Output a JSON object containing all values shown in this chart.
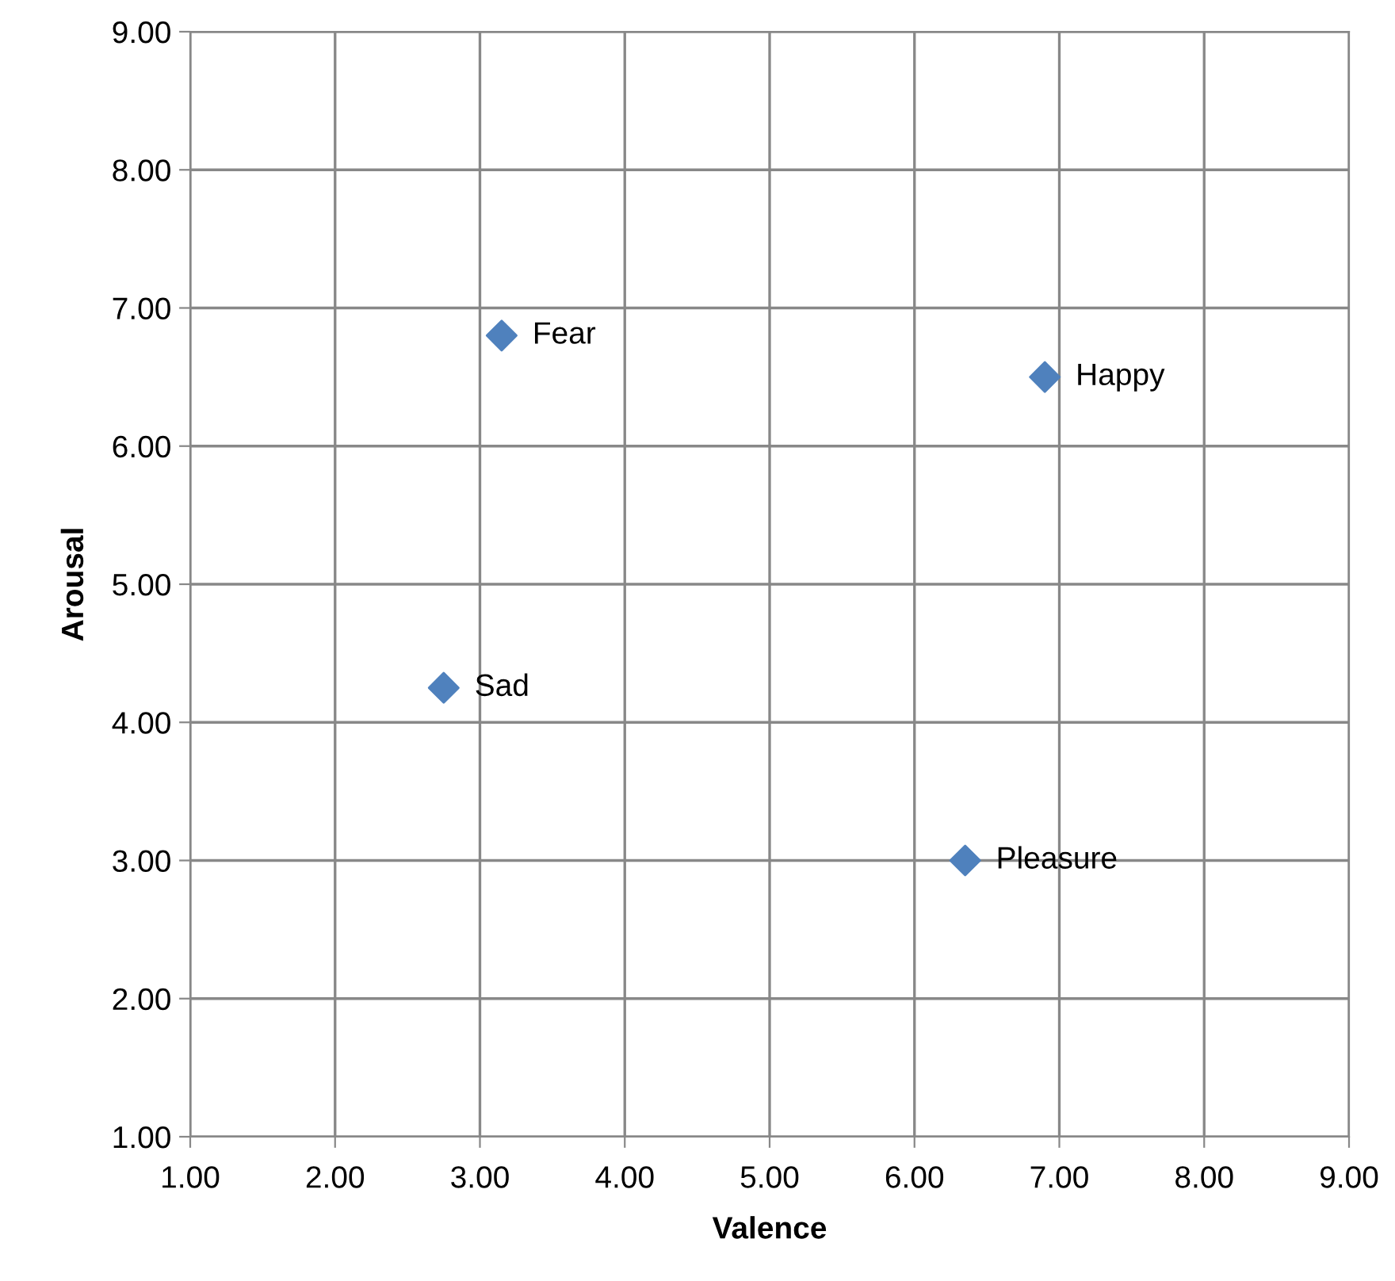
{
  "chart_data": {
    "type": "scatter",
    "xlabel": "Valence",
    "ylabel": "Arousal",
    "series": [
      {
        "color": "#4f81bd",
        "x": [
          3.15,
          6.9,
          2.75,
          6.35
        ],
        "values": [
          6.8,
          6.5,
          4.25,
          3.0
        ]
      }
    ],
    "annotations": [
      {
        "text": "Fear",
        "x": 3.15,
        "y": 6.8
      },
      {
        "text": "Happy",
        "x": 6.9,
        "y": 6.5
      },
      {
        "text": "Sad",
        "x": 2.75,
        "y": 4.25
      },
      {
        "text": "Pleasure",
        "x": 6.35,
        "y": 3.0
      }
    ],
    "xlim": [
      1,
      9
    ],
    "ylim": [
      1,
      9
    ],
    "xticks": [
      {
        "value": 1,
        "label": "1.00"
      },
      {
        "value": 2,
        "label": "2.00"
      },
      {
        "value": 3,
        "label": "3.00"
      },
      {
        "value": 4,
        "label": "4.00"
      },
      {
        "value": 5,
        "label": "5.00"
      },
      {
        "value": 6,
        "label": "6.00"
      },
      {
        "value": 7,
        "label": "7.00"
      },
      {
        "value": 8,
        "label": "8.00"
      },
      {
        "value": 9,
        "label": "9.00"
      }
    ],
    "yticks": [
      {
        "value": 1,
        "label": "1.00"
      },
      {
        "value": 2,
        "label": "2.00"
      },
      {
        "value": 3,
        "label": "3.00"
      },
      {
        "value": 4,
        "label": "4.00"
      },
      {
        "value": 5,
        "label": "5.00"
      },
      {
        "value": 6,
        "label": "6.00"
      },
      {
        "value": 7,
        "label": "7.00"
      },
      {
        "value": 8,
        "label": "8.00"
      },
      {
        "value": 9,
        "label": "9.00"
      }
    ],
    "grid": true,
    "marker": "diamond"
  }
}
